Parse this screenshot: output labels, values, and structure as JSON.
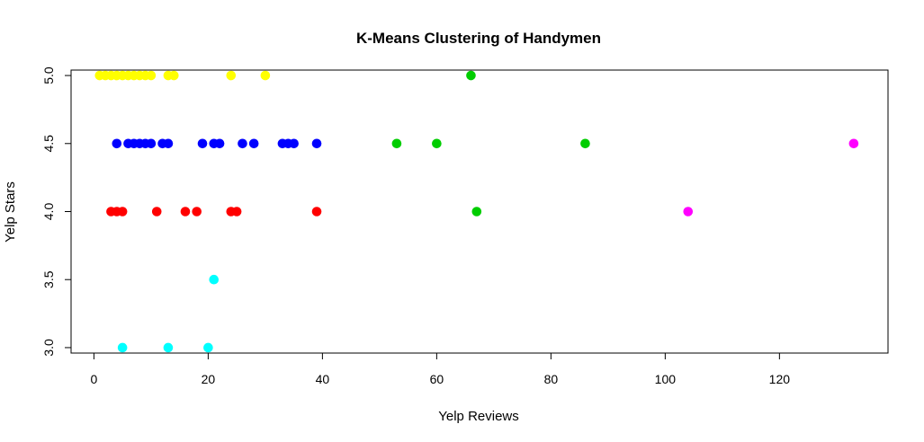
{
  "chart_data": {
    "type": "scatter",
    "title": "K-Means Clustering of Handymen",
    "xlabel": "Yelp Reviews",
    "ylabel": "Yelp Stars",
    "xlim": [
      -4,
      139
    ],
    "ylim": [
      2.96,
      5.04
    ],
    "xticks": [
      "0",
      "20",
      "40",
      "60",
      "80",
      "100",
      "120"
    ],
    "yticks": [
      "3.0",
      "3.5",
      "4.0",
      "4.5",
      "5.0"
    ],
    "grid": false,
    "legend": "none",
    "series": [
      {
        "color": "#FFFF00",
        "x": [
          1,
          2,
          3,
          4,
          5,
          6,
          7,
          8,
          9,
          10,
          13,
          14,
          24,
          30
        ],
        "y": [
          5.0,
          5.0,
          5.0,
          5.0,
          5.0,
          5.0,
          5.0,
          5.0,
          5.0,
          5.0,
          5.0,
          5.0,
          5.0,
          5.0
        ]
      },
      {
        "color": "#0000FF",
        "x": [
          4,
          6,
          7,
          8,
          9,
          10,
          12,
          13,
          19,
          21,
          22,
          26,
          28,
          33,
          34,
          35,
          39
        ],
        "y": [
          4.5,
          4.5,
          4.5,
          4.5,
          4.5,
          4.5,
          4.5,
          4.5,
          4.5,
          4.5,
          4.5,
          4.5,
          4.5,
          4.5,
          4.5,
          4.5,
          4.5
        ]
      },
      {
        "color": "#FF0000",
        "x": [
          3,
          4,
          5,
          11,
          16,
          18,
          24,
          25,
          39
        ],
        "y": [
          4.0,
          4.0,
          4.0,
          4.0,
          4.0,
          4.0,
          4.0,
          4.0,
          4.0
        ]
      },
      {
        "color": "#00CD00",
        "x": [
          66,
          53,
          60,
          86,
          67
        ],
        "y": [
          5.0,
          4.5,
          4.5,
          4.5,
          4.0
        ]
      },
      {
        "color": "#FF00FF",
        "x": [
          133,
          104
        ],
        "y": [
          4.5,
          4.0
        ]
      },
      {
        "color": "#00FFFF",
        "x": [
          21,
          5,
          13,
          20
        ],
        "y": [
          3.5,
          3.0,
          3.0,
          3.0
        ]
      }
    ]
  }
}
